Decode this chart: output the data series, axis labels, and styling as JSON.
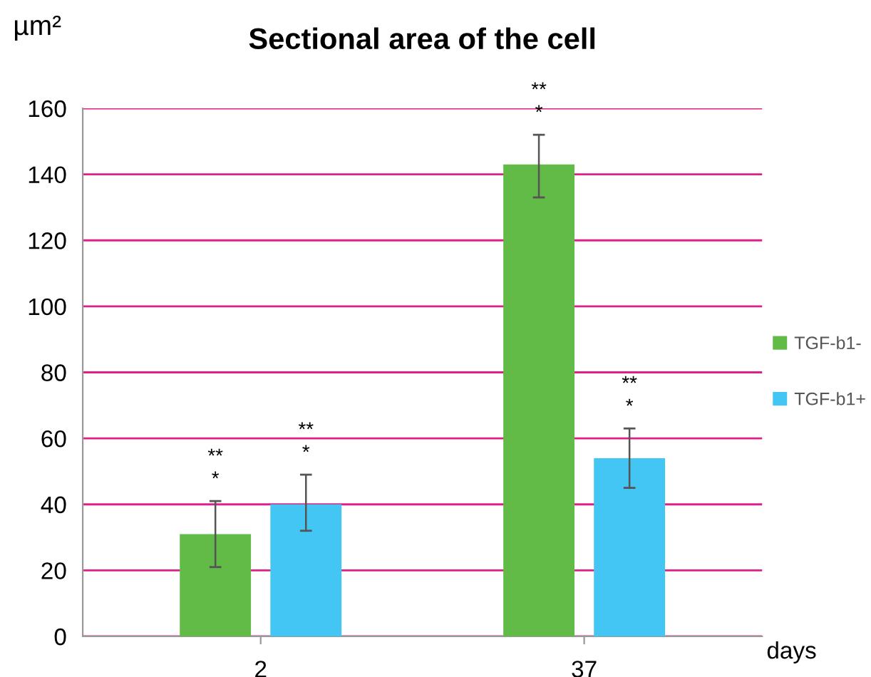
{
  "chart_data": {
    "type": "bar",
    "title": "Sectional area of the cell",
    "ylabel": "µm²",
    "xlabel": "days",
    "categories": [
      "2",
      "37"
    ],
    "series": [
      {
        "name": "TGF-b1-",
        "color": "#62bb46",
        "values": [
          31,
          143
        ],
        "errors": [
          [
            21,
            41
          ],
          [
            133,
            152
          ]
        ],
        "value_labels": [
          "**\n*",
          "**\n*"
        ]
      },
      {
        "name": "TGF-b1+",
        "color": "#43c6f3",
        "values": [
          40,
          54
        ],
        "errors": [
          [
            32,
            49
          ],
          [
            45,
            63
          ]
        ],
        "value_labels": [
          "**\n*",
          "**\n*"
        ]
      }
    ],
    "ylim": [
      0,
      160
    ],
    "yticks": [
      0,
      20,
      40,
      60,
      80,
      100,
      120,
      140,
      160
    ],
    "grid": "y",
    "legend": "right"
  }
}
